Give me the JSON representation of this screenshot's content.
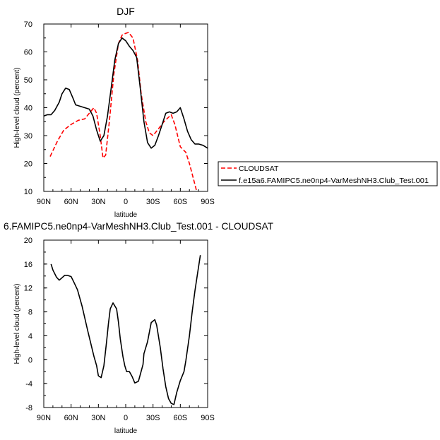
{
  "chart_data": [
    {
      "type": "line",
      "title": "DJF",
      "xlabel": "latitude",
      "ylabel": "High-level cloud (percent)",
      "xlim": [
        90,
        -90
      ],
      "ylim": [
        10,
        70
      ],
      "x_ticks": [
        90,
        60,
        30,
        0,
        -30,
        -60,
        -90
      ],
      "x_tick_labels": [
        "90N",
        "60N",
        "30N",
        "0",
        "30S",
        "60S",
        "90S"
      ],
      "y_ticks": [
        10,
        20,
        30,
        40,
        50,
        60,
        70
      ],
      "y_tick_labels": [
        "10",
        "20",
        "30",
        "40",
        "50",
        "60",
        "70"
      ],
      "legend_position": "right, outside plot",
      "series": [
        {
          "name": "CLOUDSAT",
          "color": "#ff0000",
          "style": "dashed",
          "x": [
            83,
            75,
            68,
            60,
            52,
            45,
            40,
            35,
            32,
            28,
            25,
            22,
            18,
            13,
            8,
            4,
            1,
            -3,
            -8,
            -13,
            -17,
            -22,
            -26,
            -30,
            -35,
            -42,
            -50,
            -54,
            -60,
            -66,
            -70,
            -74,
            -78
          ],
          "y": [
            22.5,
            28,
            32,
            34,
            35.5,
            36,
            38,
            40,
            38,
            30,
            22,
            23,
            35,
            52,
            63,
            66,
            66.5,
            67,
            65,
            57,
            45,
            35,
            31,
            30,
            32,
            35,
            37.5,
            34,
            26,
            24,
            20,
            15,
            10
          ]
        },
        {
          "name": "f.e15a6.FAMIPC5.ne0np4-VarMeshNH3.Club_Test.001",
          "color": "#000000",
          "style": "solid",
          "x": [
            90,
            86,
            82,
            78,
            73,
            70,
            66,
            62,
            58,
            55,
            50,
            45,
            40,
            36,
            32,
            28,
            24,
            20,
            16,
            12,
            8,
            4,
            0,
            -4,
            -8,
            -12,
            -16,
            -20,
            -24,
            -28,
            -32,
            -36,
            -40,
            -44,
            -48,
            -52,
            -56,
            -60,
            -64,
            -68,
            -72,
            -76,
            -80,
            -85,
            -90
          ],
          "y": [
            37,
            37.5,
            37.5,
            39,
            42,
            45,
            47,
            46.5,
            43.5,
            41,
            40.5,
            40,
            39.5,
            37,
            32,
            28,
            30,
            37,
            47,
            57,
            63,
            65,
            64,
            62,
            60.5,
            58,
            47,
            35,
            27.5,
            25.5,
            26.5,
            30,
            34,
            38,
            38.5,
            38,
            38.5,
            40,
            36,
            31.5,
            28.5,
            27,
            27,
            26.5,
            25.5
          ]
        }
      ]
    },
    {
      "type": "line",
      "title": "6.FAMIPC5.ne0np4-VarMeshNH3.Club_Test.001 - CLOUDSAT",
      "xlabel": "latitude",
      "ylabel": "High-level cloud (percent)",
      "xlim": [
        90,
        -90
      ],
      "ylim": [
        -8,
        20
      ],
      "x_ticks": [
        90,
        60,
        30,
        0,
        -30,
        -60,
        -90
      ],
      "x_tick_labels": [
        "90N",
        "60N",
        "30N",
        "0",
        "30S",
        "60S",
        "90S"
      ],
      "y_ticks": [
        -8,
        -4,
        0,
        4,
        8,
        12,
        16,
        20
      ],
      "y_tick_labels": [
        "-8",
        "-4",
        "0",
        "4",
        "8",
        "12",
        "16",
        "20"
      ],
      "series": [
        {
          "color": "#000000",
          "style": "solid",
          "x": [
            82,
            80,
            76,
            73,
            70,
            67,
            64,
            60,
            57,
            53,
            48,
            42,
            38,
            35,
            32,
            30,
            27,
            24,
            21,
            19,
            17,
            14,
            10,
            8,
            6,
            3,
            1,
            -1,
            -4,
            -7,
            -10,
            -14,
            -16,
            -19,
            -20,
            -24,
            -28,
            -32,
            -34,
            -38,
            -41,
            -44,
            -47,
            -50,
            -53,
            -56,
            -60,
            -64,
            -66,
            -70,
            -73,
            -76,
            -79,
            -82
          ],
          "y": [
            16,
            15,
            13.8,
            13.3,
            13.7,
            14.1,
            14.1,
            13.9,
            13,
            11.7,
            9,
            5,
            2.5,
            0.6,
            -1,
            -2.7,
            -3,
            -1,
            3,
            6,
            8.5,
            9.5,
            8.5,
            6.3,
            3.5,
            0.5,
            -1,
            -2,
            -2,
            -2.8,
            -3.9,
            -3.6,
            -2.5,
            -0.8,
            1,
            3,
            6.2,
            6.7,
            5.8,
            2,
            -1.5,
            -4.5,
            -6.5,
            -7.3,
            -7.5,
            -5.5,
            -3.5,
            -2,
            -0.2,
            4,
            8,
            11.5,
            14.5,
            17.5
          ]
        }
      ]
    }
  ]
}
